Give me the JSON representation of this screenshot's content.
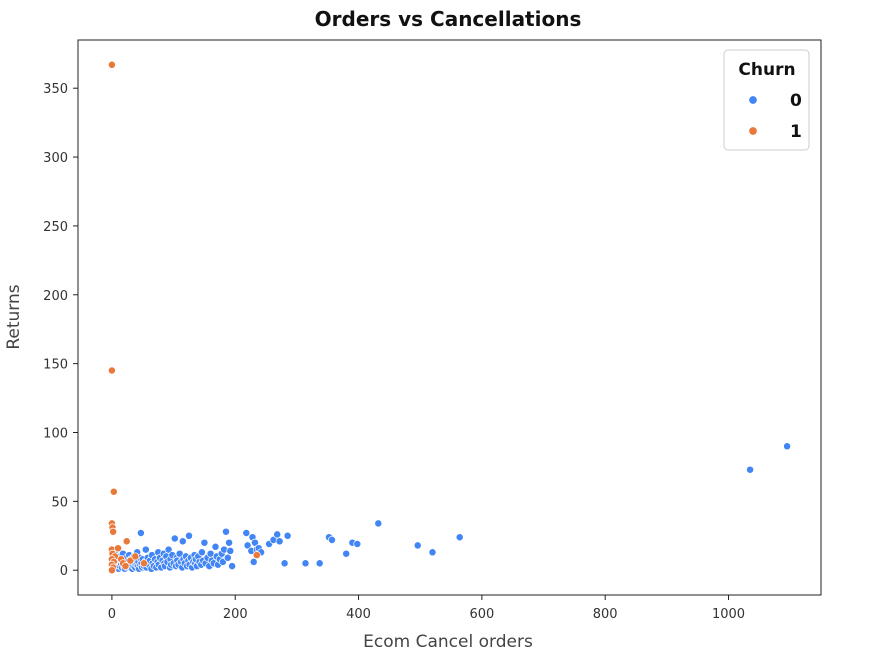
{
  "chart_data": {
    "type": "scatter",
    "title": "Orders vs Cancellations",
    "xlabel": "Ecom Cancel orders",
    "ylabel": "Returns",
    "xlim": [
      -55,
      1150
    ],
    "ylim": [
      -18,
      385
    ],
    "xticks": [
      0,
      200,
      400,
      600,
      800,
      1000
    ],
    "yticks": [
      0,
      50,
      100,
      150,
      200,
      250,
      300,
      350
    ],
    "grid": false,
    "legend": {
      "title": "Churn",
      "placement": "top-right"
    },
    "series": [
      {
        "name": "0",
        "color": "#4285f4",
        "points": [
          [
            1,
            2
          ],
          [
            2,
            6
          ],
          [
            3,
            1
          ],
          [
            4,
            4
          ],
          [
            5,
            9
          ],
          [
            6,
            3
          ],
          [
            7,
            15
          ],
          [
            8,
            2
          ],
          [
            9,
            7
          ],
          [
            10,
            5
          ],
          [
            11,
            1
          ],
          [
            12,
            8
          ],
          [
            13,
            3
          ],
          [
            14,
            10
          ],
          [
            15,
            4
          ],
          [
            16,
            2
          ],
          [
            17,
            6
          ],
          [
            18,
            12
          ],
          [
            19,
            3
          ],
          [
            20,
            5
          ],
          [
            21,
            1
          ],
          [
            22,
            7
          ],
          [
            23,
            4
          ],
          [
            24,
            9
          ],
          [
            25,
            2
          ],
          [
            26,
            6
          ],
          [
            27,
            3
          ],
          [
            28,
            11
          ],
          [
            29,
            5
          ],
          [
            30,
            2
          ],
          [
            31,
            8
          ],
          [
            32,
            4
          ],
          [
            33,
            1
          ],
          [
            34,
            6
          ],
          [
            35,
            3
          ],
          [
            36,
            10
          ],
          [
            37,
            5
          ],
          [
            38,
            2
          ],
          [
            39,
            7
          ],
          [
            40,
            4
          ],
          [
            41,
            13
          ],
          [
            42,
            3
          ],
          [
            43,
            6
          ],
          [
            44,
            1
          ],
          [
            45,
            9
          ],
          [
            46,
            4
          ],
          [
            47,
            27
          ],
          [
            48,
            5
          ],
          [
            49,
            2
          ],
          [
            50,
            8
          ],
          [
            52,
            3
          ],
          [
            54,
            6
          ],
          [
            55,
            15
          ],
          [
            56,
            2
          ],
          [
            58,
            9
          ],
          [
            60,
            4
          ],
          [
            62,
            7
          ],
          [
            64,
            1
          ],
          [
            65,
            11
          ],
          [
            66,
            5
          ],
          [
            68,
            3
          ],
          [
            70,
            8
          ],
          [
            72,
            2
          ],
          [
            74,
            6
          ],
          [
            75,
            13
          ],
          [
            76,
            4
          ],
          [
            78,
            9
          ],
          [
            80,
            2
          ],
          [
            82,
            7
          ],
          [
            84,
            12
          ],
          [
            85,
            5
          ],
          [
            86,
            3
          ],
          [
            88,
            10
          ],
          [
            90,
            6
          ],
          [
            92,
            15
          ],
          [
            94,
            2
          ],
          [
            95,
            8
          ],
          [
            96,
            4
          ],
          [
            98,
            11
          ],
          [
            100,
            5
          ],
          [
            102,
            23
          ],
          [
            104,
            3
          ],
          [
            105,
            9
          ],
          [
            106,
            7
          ],
          [
            108,
            4
          ],
          [
            110,
            12
          ],
          [
            112,
            6
          ],
          [
            114,
            2
          ],
          [
            115,
            21
          ],
          [
            116,
            8
          ],
          [
            118,
            5
          ],
          [
            120,
            10
          ],
          [
            122,
            3
          ],
          [
            124,
            7
          ],
          [
            125,
            25
          ],
          [
            126,
            4
          ],
          [
            128,
            9
          ],
          [
            130,
            2
          ],
          [
            132,
            6
          ],
          [
            134,
            11
          ],
          [
            135,
            5
          ],
          [
            136,
            8
          ],
          [
            138,
            3
          ],
          [
            140,
            10
          ],
          [
            142,
            6
          ],
          [
            145,
            4
          ],
          [
            146,
            13
          ],
          [
            148,
            7
          ],
          [
            150,
            20
          ],
          [
            152,
            5
          ],
          [
            155,
            9
          ],
          [
            158,
            3
          ],
          [
            160,
            12
          ],
          [
            162,
            7
          ],
          [
            165,
            5
          ],
          [
            168,
            17
          ],
          [
            170,
            10
          ],
          [
            172,
            4
          ],
          [
            175,
            8
          ],
          [
            178,
            12
          ],
          [
            180,
            6
          ],
          [
            182,
            15
          ],
          [
            185,
            28
          ],
          [
            188,
            9
          ],
          [
            190,
            20
          ],
          [
            192,
            14
          ],
          [
            195,
            3
          ],
          [
            218,
            27
          ],
          [
            220,
            18
          ],
          [
            226,
            14
          ],
          [
            228,
            24
          ],
          [
            230,
            6
          ],
          [
            232,
            20
          ],
          [
            235,
            15
          ],
          [
            238,
            16
          ],
          [
            242,
            13
          ],
          [
            255,
            19
          ],
          [
            262,
            22
          ],
          [
            268,
            26
          ],
          [
            272,
            21
          ],
          [
            280,
            5
          ],
          [
            285,
            25
          ],
          [
            314,
            5
          ],
          [
            337,
            5
          ],
          [
            352,
            24
          ],
          [
            357,
            22
          ],
          [
            380,
            12
          ],
          [
            390,
            20
          ],
          [
            398,
            19
          ],
          [
            432,
            34
          ],
          [
            496,
            18
          ],
          [
            520,
            13
          ],
          [
            564,
            24
          ],
          [
            1035,
            73
          ],
          [
            1095,
            90
          ]
        ]
      },
      {
        "name": "1",
        "color": "#e8793a",
        "points": [
          [
            0,
            367
          ],
          [
            0,
            145
          ],
          [
            3,
            57
          ],
          [
            0,
            34
          ],
          [
            1,
            31
          ],
          [
            2,
            28
          ],
          [
            0,
            15
          ],
          [
            1,
            12
          ],
          [
            5,
            10
          ],
          [
            0,
            8
          ],
          [
            3,
            6
          ],
          [
            0,
            4
          ],
          [
            2,
            2
          ],
          [
            0,
            0
          ],
          [
            10,
            16
          ],
          [
            15,
            8
          ],
          [
            18,
            5
          ],
          [
            22,
            3
          ],
          [
            24,
            21
          ],
          [
            30,
            7
          ],
          [
            38,
            10
          ],
          [
            52,
            5
          ],
          [
            235,
            11
          ]
        ]
      }
    ]
  }
}
